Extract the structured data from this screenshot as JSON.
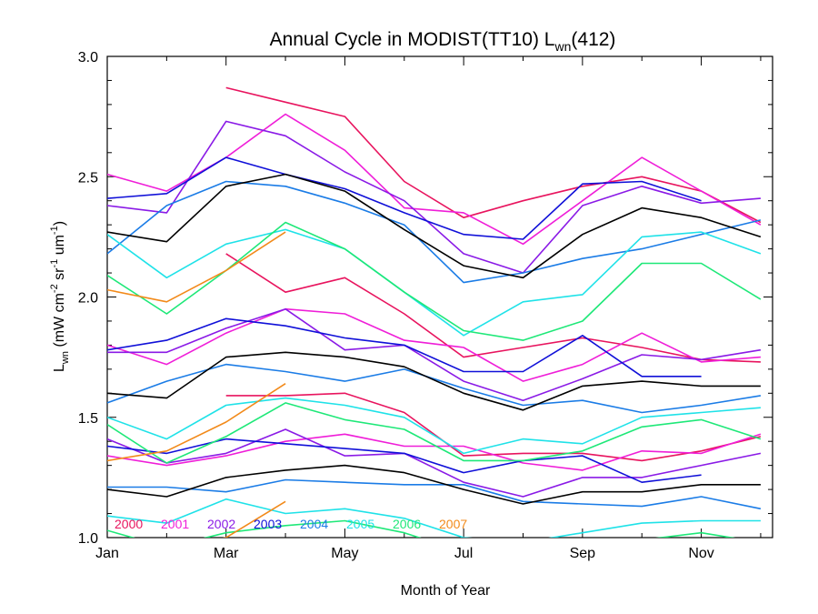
{
  "chart_data": {
    "type": "line",
    "title": "Annual Cycle in MODIST(TT10) L",
    "title_sub": "wn",
    "title_suffix": "(412)",
    "xlabel": "Month of Year",
    "ylabel_parts": [
      {
        "t": "L",
        "s": ""
      },
      {
        "t": "wn",
        "s": "sub"
      },
      {
        "t": " (mW cm",
        "s": ""
      },
      {
        "t": "-2",
        "s": "sup"
      },
      {
        "t": " sr",
        "s": ""
      },
      {
        "t": "-1",
        "s": "sup"
      },
      {
        "t": " um",
        "s": ""
      },
      {
        "t": "-1",
        "s": "sup"
      },
      {
        "t": ")",
        "s": ""
      }
    ],
    "xlim": [
      1,
      12.2
    ],
    "ylim": [
      1.0,
      3.0
    ],
    "x_ticks": [
      1,
      3,
      5,
      7,
      9,
      11
    ],
    "x_tick_labels": [
      "Jan",
      "Mar",
      "May",
      "Jul",
      "Sep",
      "Nov"
    ],
    "y_ticks": [
      1.0,
      1.5,
      2.0,
      2.5,
      3.0
    ],
    "y_tick_labels": [
      "1.0",
      "1.5",
      "2.0",
      "2.5",
      "3.0"
    ],
    "grid": false,
    "legend_position": "bottom-left",
    "series": [
      {
        "name": "2000",
        "color": "#e8145e",
        "lines": [
          {
            "x": [
              3.0,
              4.0,
              5.0,
              6.0,
              7.0,
              8.0,
              9.0,
              10.0,
              11.0,
              12.0
            ],
            "y": [
              2.87,
              2.81,
              2.75,
              2.48,
              2.33,
              2.4,
              2.46,
              2.5,
              2.44,
              2.31
            ]
          },
          {
            "x": [
              3.0,
              4.0,
              5.0,
              6.0,
              7.0,
              8.0,
              9.0,
              10.0,
              11.0,
              12.0
            ],
            "y": [
              2.18,
              2.02,
              2.08,
              1.93,
              1.75,
              1.79,
              1.83,
              1.79,
              1.74,
              1.73
            ]
          },
          {
            "x": [
              3.0,
              4.0,
              5.0,
              6.0,
              7.0,
              8.0,
              9.0,
              10.0,
              11.0,
              12.0
            ],
            "y": [
              1.59,
              1.59,
              1.6,
              1.52,
              1.34,
              1.35,
              1.35,
              1.32,
              1.36,
              1.42
            ]
          }
        ]
      },
      {
        "name": "2001",
        "color": "#ef1ed8",
        "lines": [
          {
            "x": [
              1.0,
              2.0,
              3.0,
              4.0,
              5.0,
              6.0,
              7.0,
              8.0,
              9.0,
              10.0,
              11.0,
              12.0
            ],
            "y": [
              2.51,
              2.44,
              2.58,
              2.76,
              2.61,
              2.37,
              2.35,
              2.22,
              2.4,
              2.58,
              2.44,
              2.3
            ]
          },
          {
            "x": [
              1.0,
              2.0,
              3.0,
              4.0,
              5.0,
              6.0,
              7.0,
              8.0,
              9.0,
              10.0,
              11.0,
              12.0
            ],
            "y": [
              1.8,
              1.72,
              1.85,
              1.95,
              1.93,
              1.82,
              1.79,
              1.65,
              1.72,
              1.85,
              1.73,
              1.75
            ]
          },
          {
            "x": [
              1.0,
              2.0,
              3.0,
              4.0,
              5.0,
              6.0,
              7.0,
              8.0,
              9.0,
              10.0,
              11.0,
              12.0
            ],
            "y": [
              1.34,
              1.3,
              1.34,
              1.4,
              1.43,
              1.38,
              1.38,
              1.31,
              1.28,
              1.36,
              1.35,
              1.43
            ]
          }
        ]
      },
      {
        "name": "2002",
        "color": "#8a1ae6",
        "lines": [
          {
            "x": [
              1.0,
              2.0,
              3.0,
              4.0,
              5.0,
              6.0,
              7.0,
              8.0,
              9.0,
              10.0,
              11.0,
              12.0
            ],
            "y": [
              2.38,
              2.35,
              2.73,
              2.67,
              2.52,
              2.4,
              2.18,
              2.1,
              2.38,
              2.46,
              2.39,
              2.41
            ]
          },
          {
            "x": [
              1.0,
              2.0,
              3.0,
              4.0,
              5.0,
              6.0,
              7.0,
              8.0,
              9.0,
              10.0,
              11.0,
              12.0
            ],
            "y": [
              1.77,
              1.77,
              1.87,
              1.95,
              1.78,
              1.8,
              1.65,
              1.57,
              1.66,
              1.76,
              1.74,
              1.78
            ]
          },
          {
            "x": [
              1.0,
              2.0,
              3.0,
              4.0,
              5.0,
              6.0,
              7.0,
              8.0,
              9.0,
              10.0,
              11.0,
              12.0
            ],
            "y": [
              1.41,
              1.31,
              1.35,
              1.45,
              1.34,
              1.35,
              1.23,
              1.17,
              1.25,
              1.25,
              1.3,
              1.35
            ]
          }
        ]
      },
      {
        "name": "2003",
        "color": "#1010d8",
        "lines": [
          {
            "x": [
              1.0,
              2.0,
              3.0,
              4.0,
              5.0,
              6.0,
              7.0,
              8.0,
              9.0,
              10.0,
              11.0
            ],
            "y": [
              2.41,
              2.43,
              2.58,
              2.51,
              2.45,
              2.35,
              2.26,
              2.24,
              2.47,
              2.48,
              2.4
            ]
          },
          {
            "x": [
              1.0,
              2.0,
              3.0,
              4.0,
              5.0,
              6.0,
              7.0,
              8.0,
              9.0,
              10.0,
              11.0
            ],
            "y": [
              1.78,
              1.82,
              1.91,
              1.88,
              1.83,
              1.8,
              1.69,
              1.69,
              1.84,
              1.67,
              1.67
            ]
          },
          {
            "x": [
              1.0,
              2.0,
              3.0,
              4.0,
              5.0,
              6.0,
              7.0,
              8.0,
              9.0,
              10.0,
              11.0
            ],
            "y": [
              1.38,
              1.35,
              1.41,
              1.39,
              1.37,
              1.35,
              1.27,
              1.32,
              1.34,
              1.23,
              1.26
            ]
          }
        ]
      },
      {
        "name": "2004",
        "color": "#1b7ce6",
        "lines": [
          {
            "x": [
              1.0,
              2.0,
              3.0,
              4.0,
              5.0,
              6.0,
              7.0,
              8.0,
              9.0,
              10.0,
              11.0,
              12.0
            ],
            "y": [
              2.18,
              2.38,
              2.48,
              2.46,
              2.39,
              2.3,
              2.06,
              2.1,
              2.16,
              2.2,
              2.26,
              2.32
            ]
          },
          {
            "x": [
              1.0,
              2.0,
              3.0,
              4.0,
              5.0,
              6.0,
              7.0,
              8.0,
              9.0,
              10.0,
              11.0,
              12.0
            ],
            "y": [
              1.56,
              1.65,
              1.72,
              1.69,
              1.65,
              1.7,
              1.62,
              1.55,
              1.57,
              1.52,
              1.55,
              1.59
            ]
          },
          {
            "x": [
              1.0,
              2.0,
              3.0,
              4.0,
              5.0,
              6.0,
              7.0,
              8.0,
              9.0,
              10.0,
              11.0,
              12.0
            ],
            "y": [
              1.21,
              1.21,
              1.19,
              1.24,
              1.23,
              1.22,
              1.22,
              1.15,
              1.14,
              1.13,
              1.17,
              1.12
            ]
          }
        ]
      },
      {
        "name": "2005",
        "color": "#1fe2e8",
        "lines": [
          {
            "x": [
              1.0,
              2.0,
              3.0,
              4.0,
              5.0,
              6.0,
              7.0,
              8.0,
              9.0,
              10.0,
              11.0,
              12.0
            ],
            "y": [
              2.26,
              2.08,
              2.22,
              2.28,
              2.2,
              2.02,
              1.84,
              1.98,
              2.01,
              2.25,
              2.27,
              2.18
            ]
          },
          {
            "x": [
              1.0,
              2.0,
              3.0,
              4.0,
              5.0,
              6.0,
              7.0,
              8.0,
              9.0,
              10.0,
              11.0,
              12.0
            ],
            "y": [
              1.5,
              1.41,
              1.55,
              1.58,
              1.55,
              1.5,
              1.35,
              1.41,
              1.39,
              1.5,
              1.52,
              1.54
            ]
          },
          {
            "x": [
              1.0,
              2.0,
              3.0,
              4.0,
              5.0,
              6.0,
              7.0,
              8.0,
              9.0,
              10.0,
              11.0,
              12.0
            ],
            "y": [
              1.09,
              1.06,
              1.16,
              1.1,
              1.12,
              1.08,
              1.0,
              0.98,
              1.02,
              1.06,
              1.07,
              1.07
            ]
          }
        ]
      },
      {
        "name": "2006",
        "color": "#1ee878",
        "lines": [
          {
            "x": [
              1.0,
              2.0,
              3.0,
              4.0,
              5.0,
              6.0,
              7.0,
              8.0,
              9.0,
              10.0,
              11.0,
              12.0
            ],
            "y": [
              2.09,
              1.93,
              2.11,
              2.31,
              2.2,
              2.02,
              1.86,
              1.82,
              1.9,
              2.14,
              2.14,
              1.99
            ]
          },
          {
            "x": [
              1.0,
              2.0,
              3.0,
              4.0,
              5.0,
              6.0,
              7.0,
              8.0,
              9.0,
              10.0,
              11.0,
              12.0
            ],
            "y": [
              1.47,
              1.31,
              1.42,
              1.56,
              1.49,
              1.45,
              1.32,
              1.32,
              1.36,
              1.46,
              1.49,
              1.41
            ]
          },
          {
            "x": [
              1.0,
              2.0,
              3.0,
              4.0,
              5.0,
              6.0,
              7.0,
              8.0,
              9.0,
              10.0,
              11.0,
              12.0
            ],
            "y": [
              1.03,
              0.96,
              1.02,
              1.05,
              1.07,
              1.02,
              0.94,
              0.92,
              0.96,
              0.99,
              1.02,
              0.98
            ]
          }
        ]
      },
      {
        "name": "2007",
        "color": "#f28a1a",
        "lines": [
          {
            "x": [
              1.0,
              2.0,
              3.0,
              4.0
            ],
            "y": [
              2.03,
              1.98,
              2.11,
              2.27
            ]
          },
          {
            "x": [
              1.0,
              2.0,
              3.0,
              4.0
            ],
            "y": [
              1.32,
              1.36,
              1.48,
              1.64
            ]
          },
          {
            "x": [
              1.0,
              2.0,
              3.0,
              4.0
            ],
            "y": [
              0.9,
              0.95,
              1.0,
              1.15
            ]
          }
        ]
      },
      {
        "name": "",
        "color": "#000000",
        "lines": [
          {
            "x": [
              1.0,
              2.0,
              3.0,
              4.0,
              5.0,
              6.0,
              7.0,
              8.0,
              9.0,
              10.0,
              11.0,
              12.0
            ],
            "y": [
              2.27,
              2.23,
              2.46,
              2.51,
              2.44,
              2.28,
              2.13,
              2.08,
              2.26,
              2.37,
              2.33,
              2.25
            ]
          },
          {
            "x": [
              1.0,
              2.0,
              3.0,
              4.0,
              5.0,
              6.0,
              7.0,
              8.0,
              9.0,
              10.0,
              11.0,
              12.0
            ],
            "y": [
              1.6,
              1.58,
              1.75,
              1.77,
              1.75,
              1.71,
              1.6,
              1.53,
              1.63,
              1.65,
              1.63,
              1.63
            ]
          },
          {
            "x": [
              1.0,
              2.0,
              3.0,
              4.0,
              5.0,
              6.0,
              7.0,
              8.0,
              9.0,
              10.0,
              11.0,
              12.0
            ],
            "y": [
              1.2,
              1.17,
              1.25,
              1.28,
              1.3,
              1.27,
              1.2,
              1.14,
              1.19,
              1.19,
              1.22,
              1.22
            ]
          }
        ]
      }
    ]
  }
}
